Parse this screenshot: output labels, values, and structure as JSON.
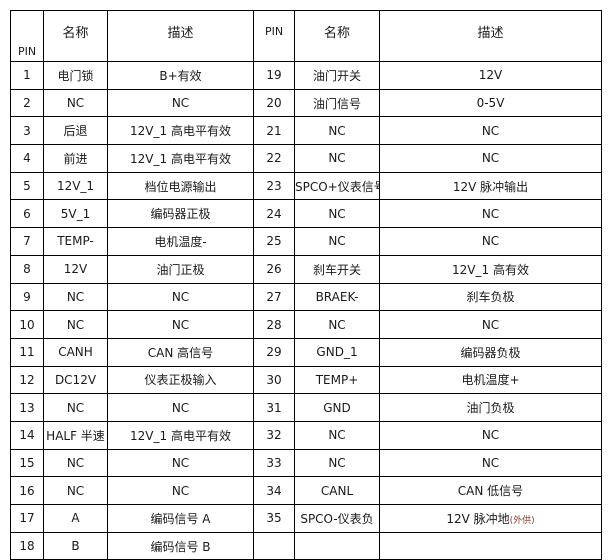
{
  "headers": {
    "pin": "PIN",
    "name": "名称",
    "desc": "描述"
  },
  "left_rows": [
    {
      "pin": "1",
      "name": "电门锁",
      "desc": "B+有效"
    },
    {
      "pin": "2",
      "name": "NC",
      "desc": "NC"
    },
    {
      "pin": "3",
      "name": "后退",
      "desc": "12V_1 高电平有效"
    },
    {
      "pin": "4",
      "name": "前进",
      "desc": "12V_1 高电平有效"
    },
    {
      "pin": "5",
      "name": "12V_1",
      "desc": "档位电源输出"
    },
    {
      "pin": "6",
      "name": "5V_1",
      "desc": "编码器正极"
    },
    {
      "pin": "7",
      "name": "TEMP-",
      "desc": "电机温度-"
    },
    {
      "pin": "8",
      "name": "12V",
      "desc": "油门正极"
    },
    {
      "pin": "9",
      "name": "NC",
      "desc": "NC"
    },
    {
      "pin": "10",
      "name": "NC",
      "desc": "NC"
    },
    {
      "pin": "11",
      "name": "CANH",
      "desc": "CAN 高信号"
    },
    {
      "pin": "12",
      "name": "DC12V",
      "desc": "仪表正极输入"
    },
    {
      "pin": "13",
      "name": "NC",
      "desc": "NC"
    },
    {
      "pin": "14",
      "name": "HALF 半速",
      "desc": "12V_1 高电平有效"
    },
    {
      "pin": "15",
      "name": "NC",
      "desc": "NC"
    },
    {
      "pin": "16",
      "name": "NC",
      "desc": "NC"
    },
    {
      "pin": "17",
      "name": "A",
      "desc": "编码信号 A"
    },
    {
      "pin": "18",
      "name": "B",
      "desc": "编码信号 B"
    }
  ],
  "right_rows": [
    {
      "pin": "19",
      "name": "油门开关",
      "desc": "12V"
    },
    {
      "pin": "20",
      "name": "油门信号",
      "desc": "0-5V"
    },
    {
      "pin": "21",
      "name": "NC",
      "desc": "NC"
    },
    {
      "pin": "22",
      "name": "NC",
      "desc": "NC"
    },
    {
      "pin": "23",
      "name": "SPCO+仪表信号",
      "desc": "12V 脉冲输出"
    },
    {
      "pin": "24",
      "name": "NC",
      "desc": "NC"
    },
    {
      "pin": "25",
      "name": "NC",
      "desc": "NC"
    },
    {
      "pin": "26",
      "name": "刹车开关",
      "desc": "12V_1 高有效"
    },
    {
      "pin": "27",
      "name": "BRAEK-",
      "desc": "刹车负极"
    },
    {
      "pin": "28",
      "name": "NC",
      "desc": "NC"
    },
    {
      "pin": "29",
      "name": "GND_1",
      "desc": "编码器负极"
    },
    {
      "pin": "30",
      "name": "TEMP+",
      "desc": "电机温度+"
    },
    {
      "pin": "31",
      "name": "GND",
      "desc": "油门负极"
    },
    {
      "pin": "32",
      "name": "NC",
      "desc": "NC"
    },
    {
      "pin": "33",
      "name": "NC",
      "desc": "NC"
    },
    {
      "pin": "34",
      "name": "CANL",
      "desc": "CAN 低信号"
    },
    {
      "pin": "35",
      "name": "SPCO-仪表负",
      "desc": "12V 脉冲地",
      "note": "(外供)"
    },
    {
      "pin": "",
      "name": "",
      "desc": ""
    }
  ]
}
